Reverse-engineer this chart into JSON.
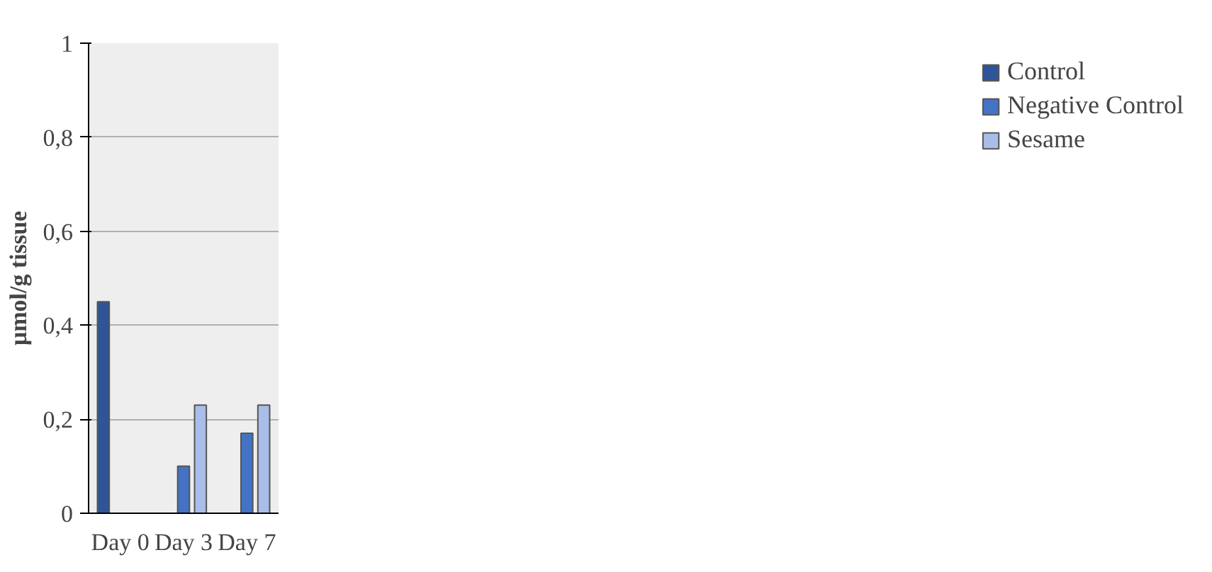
{
  "chart_data": {
    "type": "bar",
    "ylabel": "μmol/g tissue",
    "categories": [
      "Day 0",
      "Day 3",
      "Day 7"
    ],
    "series": [
      {
        "name": "Control",
        "color": "#2e5597",
        "values": [
          0.45,
          null,
          null
        ]
      },
      {
        "name": "Negative Control",
        "color": "#4472c4",
        "values": [
          null,
          0.1,
          0.17
        ]
      },
      {
        "name": "Sesame",
        "color": "#a9bde8",
        "values": [
          null,
          0.23,
          0.23
        ]
      }
    ],
    "ylim": [
      0,
      1
    ],
    "yticks": [
      0,
      {
        "value": 0.2,
        "label": "0,2"
      },
      {
        "value": 0.4,
        "label": "0,4"
      },
      {
        "value": 0.6,
        "label": "0,6"
      },
      {
        "value": 0.8,
        "label": "0,8"
      },
      1
    ],
    "grid": "y",
    "legend": "right"
  }
}
